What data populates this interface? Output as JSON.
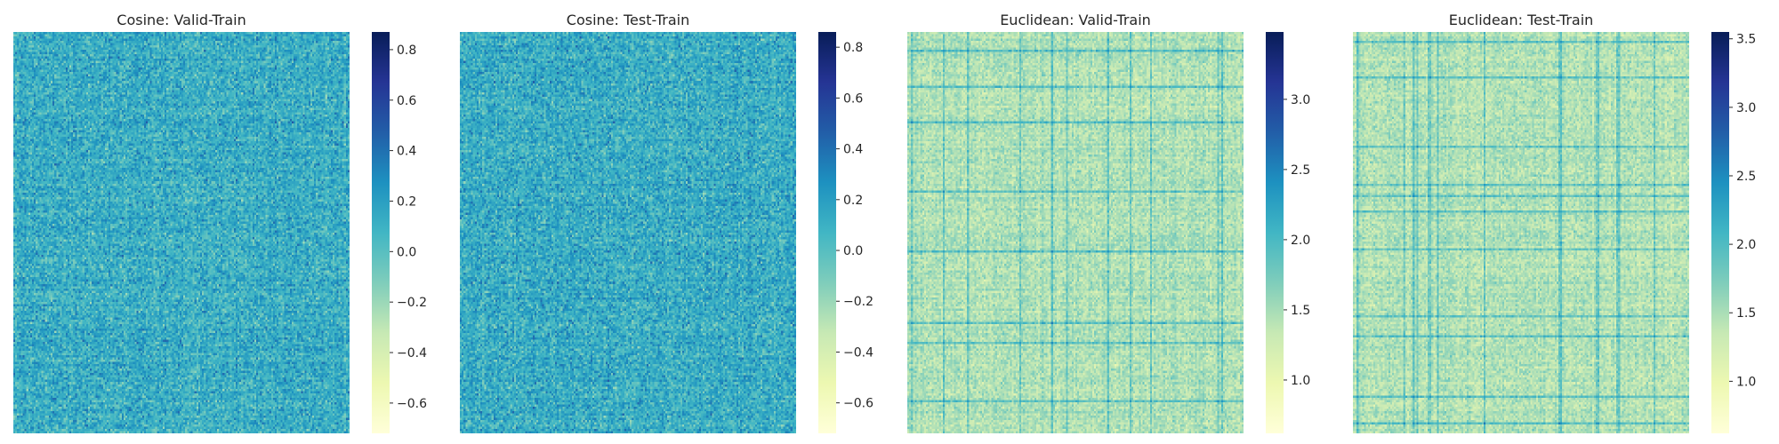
{
  "chart_data": [
    {
      "type": "heatmap",
      "title": "Cosine: Valid-Train",
      "colormap": "YlGnBu",
      "vmin": -0.72,
      "vmax": 0.87,
      "colorbar_ticks": [
        -0.6,
        -0.4,
        -0.2,
        0.0,
        0.2,
        0.4,
        0.6,
        0.8
      ],
      "colorbar_tick_labels": [
        "−0.6",
        "−0.4",
        "−0.2",
        "0.0",
        "0.2",
        "0.4",
        "0.6",
        "0.8"
      ],
      "xlabel": "",
      "ylabel": "",
      "pattern": "noise",
      "mean": 0.12,
      "spread": 0.16
    },
    {
      "type": "heatmap",
      "title": "Cosine: Test-Train",
      "colormap": "YlGnBu",
      "vmin": -0.72,
      "vmax": 0.86,
      "colorbar_ticks": [
        -0.6,
        -0.4,
        -0.2,
        0.0,
        0.2,
        0.4,
        0.6,
        0.8
      ],
      "colorbar_tick_labels": [
        "−0.6",
        "−0.4",
        "−0.2",
        "0.0",
        "0.2",
        "0.4",
        "0.6",
        "0.8"
      ],
      "xlabel": "",
      "ylabel": "",
      "pattern": "noise",
      "mean": 0.12,
      "spread": 0.16
    },
    {
      "type": "heatmap",
      "title": "Euclidean: Valid-Train",
      "colormap": "YlGnBu",
      "vmin": 0.62,
      "vmax": 3.48,
      "colorbar_ticks": [
        1.0,
        1.5,
        2.0,
        2.5,
        3.0
      ],
      "colorbar_tick_labels": [
        "1.0",
        "1.5",
        "2.0",
        "2.5",
        "3.0"
      ],
      "xlabel": "",
      "ylabel": "",
      "pattern": "distance",
      "mean": 1.45,
      "spread": 0.18
    },
    {
      "type": "heatmap",
      "title": "Euclidean: Test-Train",
      "colormap": "YlGnBu",
      "vmin": 0.62,
      "vmax": 3.55,
      "colorbar_ticks": [
        1.0,
        1.5,
        2.0,
        2.5,
        3.0,
        3.5
      ],
      "colorbar_tick_labels": [
        "1.0",
        "1.5",
        "2.0",
        "2.5",
        "3.0",
        "3.5"
      ],
      "xlabel": "",
      "ylabel": "",
      "pattern": "distance",
      "mean": 1.45,
      "spread": 0.18
    }
  ],
  "colors": {
    "colormap_stops": [
      "#ffffd9",
      "#edf8b1",
      "#c7e9b4",
      "#7fcdbb",
      "#41b6c4",
      "#1d91c0",
      "#225ea8",
      "#253494",
      "#081d58"
    ],
    "text": "#262626",
    "background": "#ffffff"
  }
}
